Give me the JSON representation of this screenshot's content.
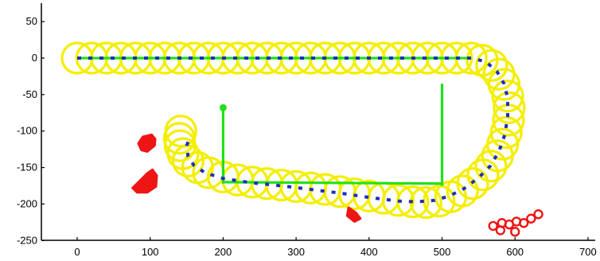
{
  "chart_data": {
    "type": "scatter",
    "title": "",
    "xlabel": "",
    "ylabel": "",
    "xlim": [
      -80,
      700
    ],
    "ylim": [
      -250,
      60
    ],
    "xticks": [
      0,
      100,
      200,
      300,
      400,
      500,
      600,
      700
    ],
    "yticks": [
      50,
      0,
      -50,
      -100,
      -150,
      -200,
      -250
    ],
    "grid": false,
    "colors": {
      "ring": "#f4ee00",
      "path": "#1e2fb8",
      "green": "#22e01a",
      "red": "#ee1515"
    },
    "series": [
      {
        "kind": "ring-trail",
        "style": "open yellow circles",
        "points": [
          [
            0,
            0
          ],
          [
            20,
            0
          ],
          [
            40,
            0
          ],
          [
            60,
            0
          ],
          [
            80,
            0
          ],
          [
            100,
            0
          ],
          [
            120,
            0
          ],
          [
            140,
            0
          ],
          [
            160,
            0
          ],
          [
            180,
            0
          ],
          [
            200,
            0
          ],
          [
            220,
            0
          ],
          [
            240,
            0
          ],
          [
            260,
            0
          ],
          [
            280,
            0
          ],
          [
            300,
            0
          ],
          [
            320,
            0
          ],
          [
            340,
            0
          ],
          [
            360,
            0
          ],
          [
            380,
            0
          ],
          [
            400,
            0
          ],
          [
            420,
            0
          ],
          [
            440,
            0
          ],
          [
            460,
            0
          ],
          [
            480,
            0
          ],
          [
            500,
            0
          ],
          [
            520,
            0
          ],
          [
            540,
            0
          ],
          [
            555,
            -3
          ],
          [
            568,
            -10
          ],
          [
            578,
            -22
          ],
          [
            585,
            -36
          ],
          [
            590,
            -52
          ],
          [
            592,
            -68
          ],
          [
            591,
            -85
          ],
          [
            588,
            -102
          ],
          [
            583,
            -118
          ],
          [
            576,
            -134
          ],
          [
            567,
            -148
          ],
          [
            556,
            -160
          ],
          [
            542,
            -172
          ],
          [
            528,
            -182
          ],
          [
            512,
            -190
          ],
          [
            496,
            -196
          ],
          [
            478,
            -198
          ],
          [
            460,
            -197
          ],
          [
            440,
            -195
          ],
          [
            420,
            -192
          ],
          [
            400,
            -189
          ],
          [
            380,
            -186
          ],
          [
            360,
            -183
          ],
          [
            340,
            -180
          ],
          [
            320,
            -178
          ],
          [
            300,
            -176
          ],
          [
            280,
            -174
          ],
          [
            260,
            -172
          ],
          [
            240,
            -170
          ],
          [
            220,
            -167
          ],
          [
            200,
            -163
          ],
          [
            180,
            -157
          ],
          [
            165,
            -150
          ],
          [
            152,
            -141
          ],
          [
            145,
            -131
          ],
          [
            141,
            -120
          ],
          [
            140,
            -110
          ],
          [
            142,
            -100
          ]
        ]
      },
      {
        "kind": "dotted-path",
        "style": "blue dashes",
        "points": [
          [
            0,
            0
          ],
          [
            100,
            0
          ],
          [
            200,
            0
          ],
          [
            300,
            0
          ],
          [
            400,
            0
          ],
          [
            500,
            0
          ],
          [
            540,
            0
          ],
          [
            560,
            -5
          ],
          [
            575,
            -18
          ],
          [
            585,
            -35
          ],
          [
            590,
            -55
          ],
          [
            590,
            -80
          ],
          [
            586,
            -105
          ],
          [
            578,
            -128
          ],
          [
            566,
            -148
          ],
          [
            550,
            -164
          ],
          [
            530,
            -179
          ],
          [
            510,
            -189
          ],
          [
            490,
            -195
          ],
          [
            465,
            -197
          ],
          [
            440,
            -196
          ],
          [
            400,
            -191
          ],
          [
            360,
            -185
          ],
          [
            320,
            -180
          ],
          [
            280,
            -175
          ],
          [
            240,
            -171
          ],
          [
            200,
            -165
          ],
          [
            175,
            -157
          ],
          [
            160,
            -147
          ],
          [
            152,
            -135
          ],
          [
            150,
            -120
          ],
          [
            155,
            -107
          ]
        ]
      },
      {
        "kind": "green-lines",
        "style": "green segments",
        "segments": [
          [
            [
              0,
              0
            ],
            [
              540,
              0
            ]
          ],
          [
            [
              200,
              -68
            ],
            [
              200,
              -172
            ]
          ],
          [
            [
              500,
              -35
            ],
            [
              500,
              -175
            ]
          ],
          [
            [
              200,
              -170
            ],
            [
              500,
              -172
            ]
          ]
        ],
        "points": [
          [
            200,
            -68
          ]
        ]
      },
      {
        "kind": "red-blobs",
        "style": "filled red shapes",
        "blobs": [
          [
            [
              102,
              -105
            ],
            [
              107,
              -111
            ],
            [
              106,
              -120
            ],
            [
              96,
              -128
            ],
            [
              88,
              -126
            ],
            [
              84,
              -117
            ],
            [
              90,
              -108
            ]
          ],
          [
            [
              103,
              -153
            ],
            [
              109,
              -161
            ],
            [
              108,
              -176
            ],
            [
              96,
              -184
            ],
            [
              82,
              -184
            ],
            [
              76,
              -178
            ],
            [
              86,
              -168
            ],
            [
              96,
              -158
            ]
          ],
          [
            [
              372,
              -205
            ],
            [
              382,
              -212
            ],
            [
              388,
              -220
            ],
            [
              380,
              -224
            ],
            [
              370,
              -216
            ]
          ]
        ]
      },
      {
        "kind": "red-rings",
        "style": "open red circles",
        "points": [
          [
            570,
            -230
          ],
          [
            582,
            -226
          ],
          [
            592,
            -228
          ],
          [
            602,
            -224
          ],
          [
            612,
            -226
          ],
          [
            622,
            -220
          ],
          [
            632,
            -214
          ],
          [
            580,
            -236
          ],
          [
            600,
            -238
          ]
        ]
      }
    ]
  }
}
